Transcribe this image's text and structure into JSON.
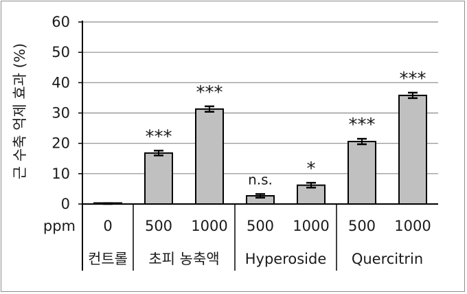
{
  "chart_data": {
    "type": "bar",
    "ylabel": "근 수축 억제 효과 (%)",
    "ylim": [
      0,
      60
    ],
    "yticks": [
      0,
      10,
      20,
      30,
      40,
      50,
      60
    ],
    "grid": true,
    "x_row_label": "ppm",
    "categories": [
      "0",
      "500",
      "1000",
      "500",
      "1000",
      "500",
      "1000"
    ],
    "groups": [
      {
        "label": "컨트롤",
        "categories": [
          "0"
        ]
      },
      {
        "label": "초피 농축액",
        "categories": [
          "500",
          "1000"
        ]
      },
      {
        "label": "Hyperoside",
        "categories": [
          "500",
          "1000"
        ]
      },
      {
        "label": "Quercitrin",
        "categories": [
          "500",
          "1000"
        ]
      }
    ],
    "values": [
      0,
      16.8,
      31.3,
      2.7,
      6.2,
      20.6,
      35.8
    ],
    "errors": [
      0.3,
      0.8,
      0.9,
      0.6,
      0.8,
      0.9,
      0.9
    ],
    "significance": [
      "",
      "***",
      "***",
      "n.s.",
      "*",
      "***",
      "***"
    ],
    "bar_color": "#c0c0c0",
    "bar_edge_color": "#000000"
  }
}
